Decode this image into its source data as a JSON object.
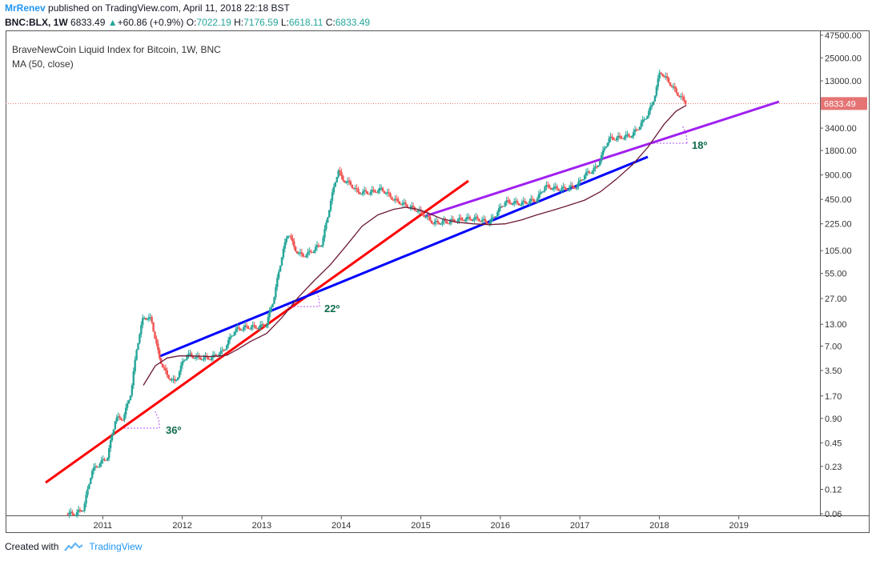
{
  "header": {
    "author": "MrRenev",
    "published": "published on TradingView.com, April 11, 2018 22:18 BST",
    "symbol": "BNC:BLX, 1W",
    "last": "6833.49",
    "change": "+60.86 (+0.9%)",
    "o_label": "O:",
    "o": "7022.19",
    "h_label": "H:",
    "h": "7176.59",
    "l_label": "L:",
    "l": "6618.11",
    "c_label": "C:",
    "c": "6833.49"
  },
  "legend": {
    "title": "BraveNewCoin Liquid Index for Bitcoin, 1W, BNC",
    "ma": "MA (50, close)"
  },
  "footer": {
    "created": "Created with",
    "brand": "TradingView"
  },
  "colors": {
    "up": "#26a69a",
    "down": "#ef5350",
    "ma": "#6d1a36",
    "red_line": "#ff0000",
    "blue_line": "#0000ff",
    "purple_line": "#a020f0",
    "price_tag": "#e57373",
    "accent": "#2196f3"
  },
  "chart_data": {
    "type": "line",
    "scale": "log",
    "title": "BraveNewCoin Liquid Index for Bitcoin, 1W, BNC",
    "x_ticks": [
      "2011",
      "2012",
      "2013",
      "2014",
      "2015",
      "2016",
      "2017",
      "2018",
      "2019"
    ],
    "y_ticks": [
      "47500.00",
      "25000.00",
      "13000.00",
      "6833.49",
      "3400.00",
      "1800.00",
      "900.00",
      "450.00",
      "225.00",
      "105.00",
      "55.00",
      "27.00",
      "13.00",
      "7.00",
      "3.50",
      "1.70",
      "0.90",
      "0.45",
      "0.23",
      "0.12",
      "0.06"
    ],
    "last_price": "6833.49",
    "series": [
      {
        "name": "BraveNewCoin Liquid Index for Bitcoin",
        "x": [
          2010.5,
          2010.6,
          2010.7,
          2010.8,
          2010.9,
          2011.0,
          2011.1,
          2011.2,
          2011.3,
          2011.37,
          2011.45,
          2011.55,
          2011.65,
          2011.75,
          2011.85,
          2011.95,
          2012.0,
          2012.15,
          2012.3,
          2012.45,
          2012.6,
          2012.75,
          2012.9,
          2013.0,
          2013.1,
          2013.2,
          2013.28,
          2013.35,
          2013.45,
          2013.55,
          2013.7,
          2013.8,
          2013.9,
          2013.95,
          2014.05,
          2014.15,
          2014.3,
          2014.45,
          2014.6,
          2014.75,
          2014.9,
          2015.0,
          2015.1,
          2015.3,
          2015.5,
          2015.65,
          2015.8,
          2016.0,
          2016.2,
          2016.4,
          2016.5,
          2016.7,
          2016.9,
          2017.0,
          2017.15,
          2017.3,
          2017.45,
          2017.6,
          2017.75,
          2017.85,
          2017.95,
          2018.05,
          2018.15,
          2018.28
        ],
        "y": [
          0.06,
          0.06,
          0.07,
          0.2,
          0.25,
          0.3,
          0.9,
          0.9,
          2.0,
          7.0,
          16,
          15,
          5.0,
          3.0,
          2.5,
          4.5,
          5.5,
          5.0,
          5.0,
          6.0,
          11,
          12,
          12,
          13,
          30,
          100,
          180,
          110,
          90,
          100,
          130,
          400,
          1050,
          800,
          700,
          550,
          550,
          600,
          450,
          380,
          330,
          280,
          230,
          240,
          260,
          260,
          230,
          420,
          400,
          450,
          650,
          600,
          650,
          900,
          1100,
          2500,
          2600,
          2800,
          4300,
          6500,
          17000,
          13000,
          9500,
          6833.49
        ]
      },
      {
        "name": "MA (50, close)",
        "x": [
          2011.45,
          2011.6,
          2011.75,
          2011.9,
          2012.05,
          2012.3,
          2012.5,
          2012.65,
          2012.8,
          2013.0,
          2013.2,
          2013.4,
          2013.6,
          2013.8,
          2014.0,
          2014.2,
          2014.4,
          2014.6,
          2014.75,
          2014.9,
          2015.05,
          2015.2,
          2015.4,
          2015.6,
          2015.8,
          2016.0,
          2016.2,
          2016.4,
          2016.6,
          2016.8,
          2017.0,
          2017.2,
          2017.4,
          2017.6,
          2017.8,
          2018.0,
          2018.15,
          2018.28
        ],
        "y": [
          2.3,
          4.0,
          5.0,
          5.3,
          5.3,
          5.2,
          5.4,
          6.5,
          8.0,
          10,
          16,
          28,
          45,
          70,
          120,
          210,
          290,
          340,
          360,
          340,
          300,
          260,
          235,
          225,
          220,
          225,
          250,
          290,
          330,
          380,
          440,
          560,
          800,
          1200,
          2000,
          3800,
          5500,
          6500
        ]
      }
    ],
    "annotations": [
      {
        "label": "36º",
        "line": "red"
      },
      {
        "label": "22º",
        "line": "blue"
      },
      {
        "label": "18º",
        "line": "purple"
      }
    ]
  }
}
